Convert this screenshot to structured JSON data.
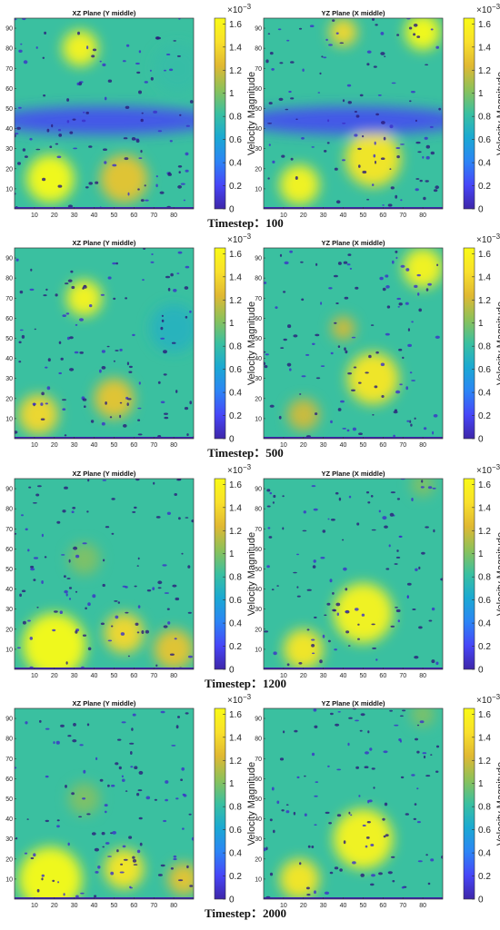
{
  "colors": {
    "colormap": [
      "#3e26a8",
      "#4746f8",
      "#2c85f5",
      "#1ba9d2",
      "#3ac0a0",
      "#8cc15a",
      "#e0b832",
      "#f9e02b",
      "#f9fb15"
    ],
    "axis": "#333333"
  },
  "chart_data": {
    "type": "heatmap",
    "xticks": [
      "10",
      "20",
      "30",
      "40",
      "50",
      "60",
      "70",
      "80"
    ],
    "yticks": [
      "10",
      "20",
      "30",
      "40",
      "50",
      "60",
      "70",
      "80",
      "90"
    ],
    "xlim": [
      0,
      90
    ],
    "ylim": [
      0,
      95
    ],
    "colorbar": {
      "label": "Velocity Magnitude",
      "multiplier": "×10",
      "exponent": "−3",
      "ticks": [
        "0",
        "0.2",
        "0.4",
        "0.6",
        "0.8",
        "1",
        "1.2",
        "1.4",
        "1.6"
      ],
      "range": [
        0,
        1.65
      ]
    },
    "timesteps": [
      {
        "label": "Timestep：100",
        "panels": [
          {
            "title": "XZ Plane (Y middle)",
            "blobs": [
              {
                "x": 18,
                "y": 15,
                "r": 12,
                "v": 1.65
              },
              {
                "x": 33,
                "y": 80,
                "r": 9,
                "v": 1.6
              },
              {
                "x": 55,
                "y": 15,
                "r": 12,
                "v": 1.3
              },
              {
                "x": 82,
                "y": 70,
                "r": 12,
                "v": 0.8
              },
              {
                "x": 45,
                "y": 44,
                "r": 40,
                "v": -0.7
              }
            ]
          },
          {
            "title": "YZ Plane (X middle)",
            "blobs": [
              {
                "x": 18,
                "y": 12,
                "r": 10,
                "v": 1.6
              },
              {
                "x": 55,
                "y": 25,
                "r": 14,
                "v": 1.5
              },
              {
                "x": 80,
                "y": 88,
                "r": 9,
                "v": 1.65
              },
              {
                "x": 40,
                "y": 88,
                "r": 7,
                "v": 1.4
              },
              {
                "x": 45,
                "y": 44,
                "r": 40,
                "v": -0.7
              }
            ]
          }
        ]
      },
      {
        "label": "Timestep：500",
        "panels": [
          {
            "title": "XZ Plane (Y middle)",
            "blobs": [
              {
                "x": 35,
                "y": 70,
                "r": 9,
                "v": 1.6
              },
              {
                "x": 12,
                "y": 12,
                "r": 10,
                "v": 1.4
              },
              {
                "x": 50,
                "y": 20,
                "r": 10,
                "v": 1.3
              },
              {
                "x": 80,
                "y": 55,
                "r": 12,
                "v": 0.7
              }
            ]
          },
          {
            "title": "YZ Plane (X middle)",
            "blobs": [
              {
                "x": 55,
                "y": 30,
                "r": 13,
                "v": 1.5
              },
              {
                "x": 80,
                "y": 85,
                "r": 10,
                "v": 1.6
              },
              {
                "x": 20,
                "y": 12,
                "r": 8,
                "v": 1.2
              },
              {
                "x": 40,
                "y": 55,
                "r": 6,
                "v": 1.2
              }
            ]
          }
        ]
      },
      {
        "label": "Timestep：1200",
        "panels": [
          {
            "title": "XZ Plane (Y middle)",
            "blobs": [
              {
                "x": 20,
                "y": 12,
                "r": 16,
                "v": 1.65
              },
              {
                "x": 55,
                "y": 18,
                "r": 10,
                "v": 1.4
              },
              {
                "x": 35,
                "y": 55,
                "r": 8,
                "v": 1.0
              },
              {
                "x": 80,
                "y": 10,
                "r": 10,
                "v": 1.3
              }
            ]
          },
          {
            "title": "YZ Plane (X middle)",
            "blobs": [
              {
                "x": 50,
                "y": 28,
                "r": 15,
                "v": 1.6
              },
              {
                "x": 20,
                "y": 10,
                "r": 10,
                "v": 1.5
              },
              {
                "x": 80,
                "y": 92,
                "r": 6,
                "v": 1.0
              }
            ]
          }
        ]
      },
      {
        "label": "Timestep：2000",
        "panels": [
          {
            "title": "XZ Plane (Y middle)",
            "blobs": [
              {
                "x": 18,
                "y": 10,
                "r": 16,
                "v": 1.65
              },
              {
                "x": 55,
                "y": 15,
                "r": 10,
                "v": 1.5
              },
              {
                "x": 35,
                "y": 50,
                "r": 8,
                "v": 1.0
              },
              {
                "x": 85,
                "y": 10,
                "r": 8,
                "v": 1.3
              }
            ]
          },
          {
            "title": "YZ Plane (X middle)",
            "blobs": [
              {
                "x": 50,
                "y": 30,
                "r": 15,
                "v": 1.6
              },
              {
                "x": 18,
                "y": 10,
                "r": 10,
                "v": 1.5
              },
              {
                "x": 80,
                "y": 92,
                "r": 6,
                "v": 1.0
              }
            ]
          }
        ]
      }
    ]
  }
}
